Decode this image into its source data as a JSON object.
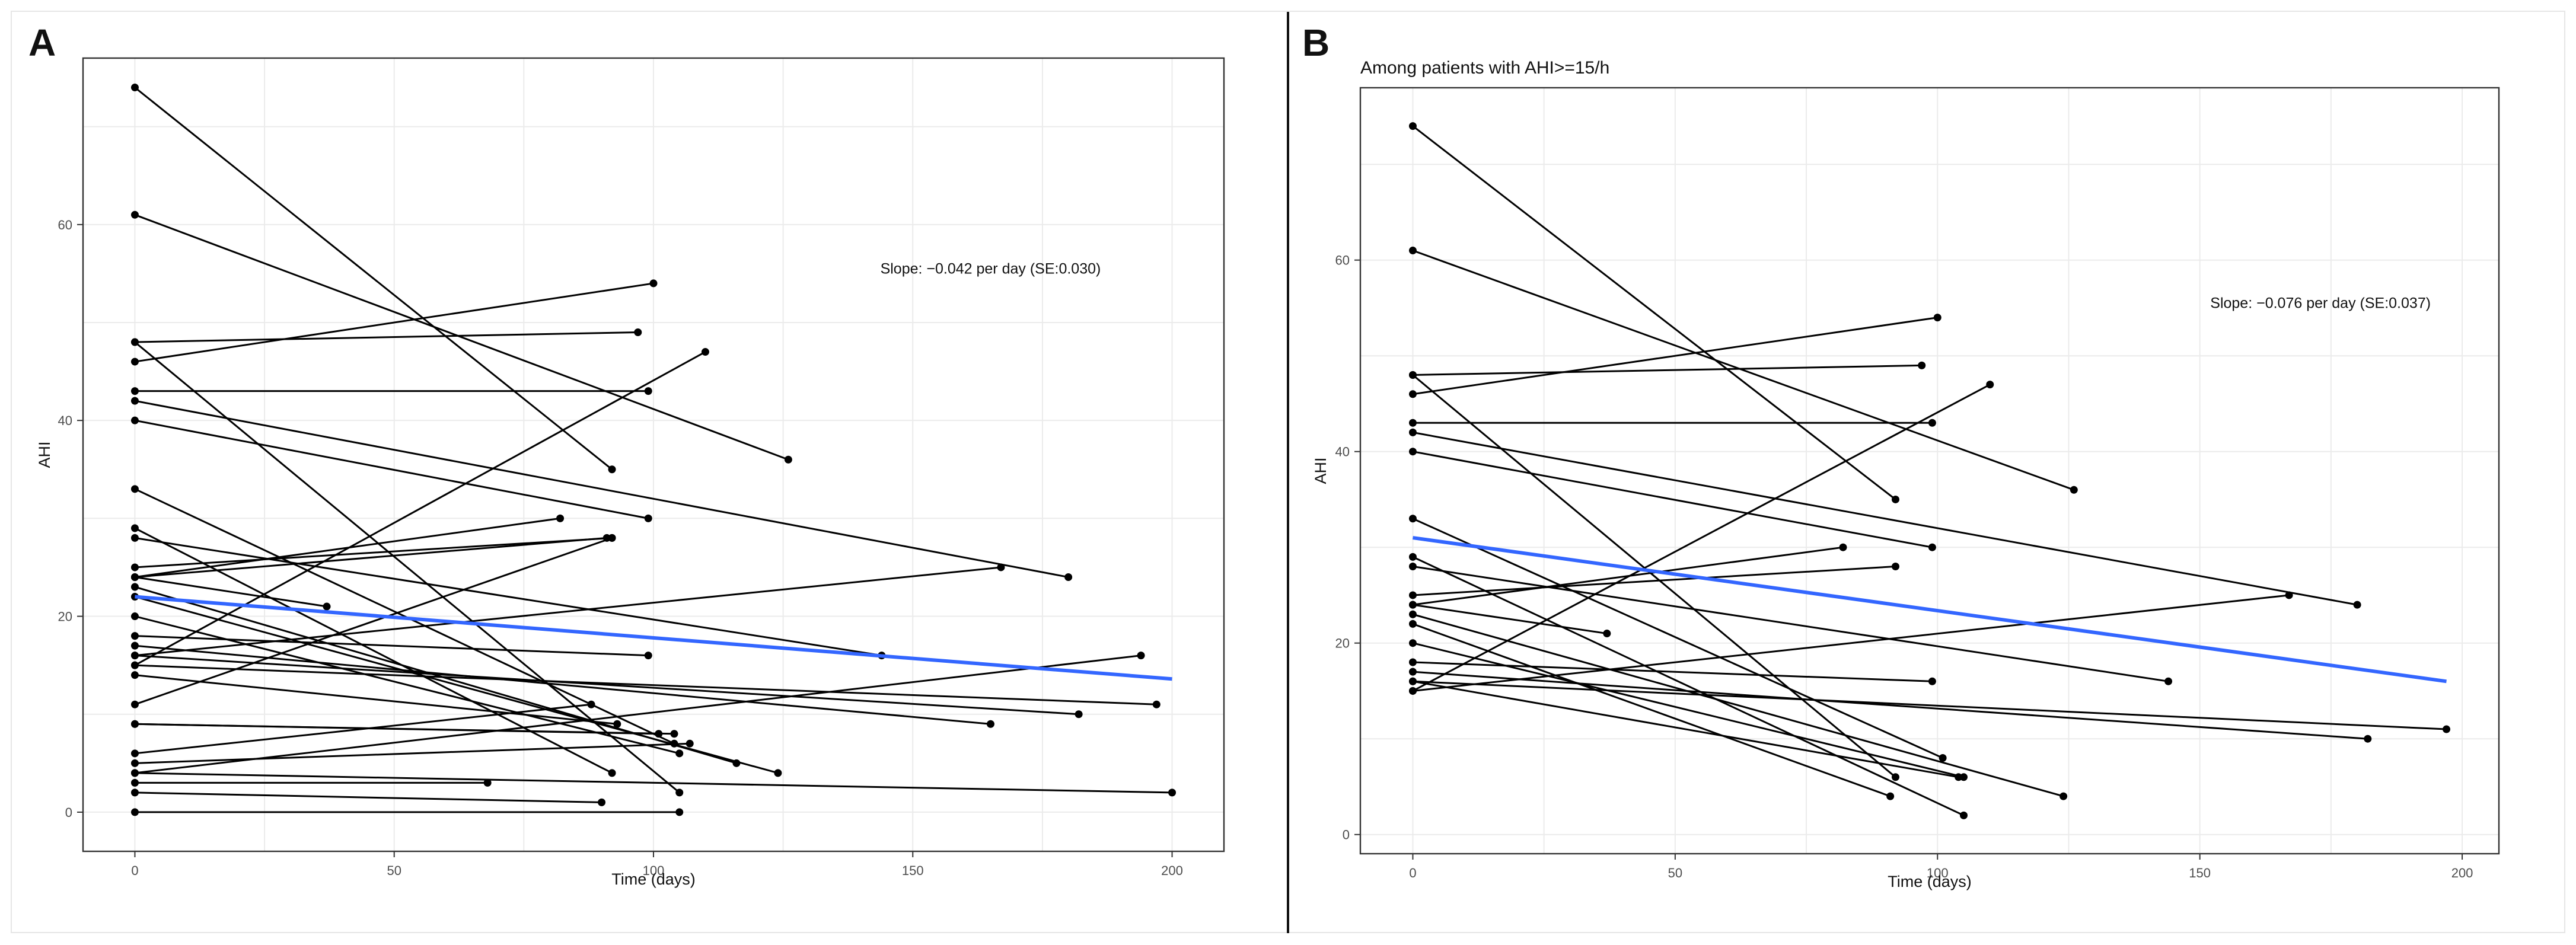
{
  "chart_data": [
    {
      "panel_letter": "A",
      "type": "line",
      "title": "",
      "xlabel": "Time (days)",
      "ylabel": "AHI",
      "xlim": [
        -10,
        210
      ],
      "ylim": [
        -4,
        77
      ],
      "x_ticks": [
        0,
        50,
        100,
        150,
        200
      ],
      "y_ticks": [
        0,
        20,
        40,
        60
      ],
      "grid": true,
      "annotation": {
        "text": "Slope: −0.042 per day (SE:0.030)",
        "x": 165,
        "y": 55
      },
      "trend": {
        "color": "#3366ff",
        "x": [
          0,
          200
        ],
        "y": [
          22.0,
          13.6
        ]
      },
      "segments": [
        [
          [
            0,
            74
          ],
          [
            92,
            35
          ]
        ],
        [
          [
            0,
            61
          ],
          [
            126,
            36
          ]
        ],
        [
          [
            0,
            48
          ],
          [
            97,
            49
          ]
        ],
        [
          [
            0,
            48
          ],
          [
            105,
            2
          ]
        ],
        [
          [
            0,
            46
          ],
          [
            100,
            54
          ]
        ],
        [
          [
            0,
            43
          ],
          [
            99,
            43
          ]
        ],
        [
          [
            0,
            42
          ],
          [
            180,
            24
          ]
        ],
        [
          [
            0,
            40
          ],
          [
            99,
            30
          ]
        ],
        [
          [
            0,
            33
          ],
          [
            104,
            7
          ]
        ],
        [
          [
            0,
            29
          ],
          [
            92,
            4
          ]
        ],
        [
          [
            0,
            28
          ],
          [
            144,
            16
          ]
        ],
        [
          [
            0,
            25
          ],
          [
            92,
            28
          ]
        ],
        [
          [
            0,
            24
          ],
          [
            91,
            28
          ]
        ],
        [
          [
            0,
            24
          ],
          [
            37,
            21
          ]
        ],
        [
          [
            0,
            24
          ],
          [
            82,
            30
          ]
        ],
        [
          [
            0,
            23
          ],
          [
            116,
            5
          ]
        ],
        [
          [
            0,
            22
          ],
          [
            124,
            4
          ]
        ],
        [
          [
            0,
            20
          ],
          [
            105,
            6
          ]
        ],
        [
          [
            0,
            18
          ],
          [
            99,
            16
          ]
        ],
        [
          [
            0,
            17
          ],
          [
            165,
            9
          ]
        ],
        [
          [
            0,
            16
          ],
          [
            167,
            25
          ]
        ],
        [
          [
            0,
            16
          ],
          [
            182,
            10
          ]
        ],
        [
          [
            0,
            15
          ],
          [
            197,
            11
          ]
        ],
        [
          [
            0,
            15
          ],
          [
            110,
            47
          ]
        ],
        [
          [
            0,
            14
          ],
          [
            93,
            9
          ]
        ],
        [
          [
            0,
            11
          ],
          [
            92,
            28
          ]
        ],
        [
          [
            0,
            9
          ],
          [
            101,
            8
          ]
        ],
        [
          [
            0,
            9
          ],
          [
            104,
            8
          ]
        ],
        [
          [
            0,
            6
          ],
          [
            88,
            11
          ]
        ],
        [
          [
            0,
            5
          ],
          [
            107,
            7
          ]
        ],
        [
          [
            0,
            4
          ],
          [
            194,
            16
          ]
        ],
        [
          [
            0,
            4
          ],
          [
            200,
            2
          ]
        ],
        [
          [
            0,
            3
          ],
          [
            68,
            3
          ]
        ],
        [
          [
            0,
            2
          ],
          [
            90,
            1
          ]
        ],
        [
          [
            0,
            0
          ],
          [
            105,
            0
          ]
        ]
      ]
    },
    {
      "panel_letter": "B",
      "type": "line",
      "title": "Among patients with AHI>=15/h",
      "xlabel": "Time (days)",
      "ylabel": "AHI",
      "xlim": [
        -10,
        207
      ],
      "ylim": [
        -2,
        78
      ],
      "x_ticks": [
        0,
        50,
        100,
        150,
        200
      ],
      "y_ticks": [
        0,
        20,
        40,
        60
      ],
      "grid": true,
      "annotation": {
        "text": "Slope: −0.076 per day (SE:0.037)",
        "x": 173,
        "y": 55
      },
      "trend": {
        "color": "#3366ff",
        "x": [
          0,
          197
        ],
        "y": [
          31.0,
          16.0
        ]
      },
      "segments": [
        [
          [
            0,
            74
          ],
          [
            92,
            35
          ]
        ],
        [
          [
            0,
            61
          ],
          [
            126,
            36
          ]
        ],
        [
          [
            0,
            48
          ],
          [
            97,
            49
          ]
        ],
        [
          [
            0,
            48
          ],
          [
            92,
            6
          ]
        ],
        [
          [
            0,
            46
          ],
          [
            100,
            54
          ]
        ],
        [
          [
            0,
            43
          ],
          [
            99,
            43
          ]
        ],
        [
          [
            0,
            42
          ],
          [
            180,
            24
          ]
        ],
        [
          [
            0,
            40
          ],
          [
            99,
            30
          ]
        ],
        [
          [
            0,
            33
          ],
          [
            101,
            8
          ]
        ],
        [
          [
            0,
            29
          ],
          [
            105,
            2
          ]
        ],
        [
          [
            0,
            28
          ],
          [
            144,
            16
          ]
        ],
        [
          [
            0,
            25
          ],
          [
            92,
            28
          ]
        ],
        [
          [
            0,
            24
          ],
          [
            37,
            21
          ]
        ],
        [
          [
            0,
            24
          ],
          [
            82,
            30
          ]
        ],
        [
          [
            0,
            23
          ],
          [
            124,
            4
          ]
        ],
        [
          [
            0,
            22
          ],
          [
            91,
            4
          ]
        ],
        [
          [
            0,
            20
          ],
          [
            105,
            6
          ]
        ],
        [
          [
            0,
            18
          ],
          [
            99,
            16
          ]
        ],
        [
          [
            0,
            17
          ],
          [
            182,
            10
          ]
        ],
        [
          [
            0,
            16
          ],
          [
            197,
            11
          ]
        ],
        [
          [
            0,
            16
          ],
          [
            104,
            6
          ]
        ],
        [
          [
            0,
            15
          ],
          [
            167,
            25
          ]
        ],
        [
          [
            0,
            15
          ],
          [
            110,
            47
          ]
        ]
      ]
    }
  ]
}
